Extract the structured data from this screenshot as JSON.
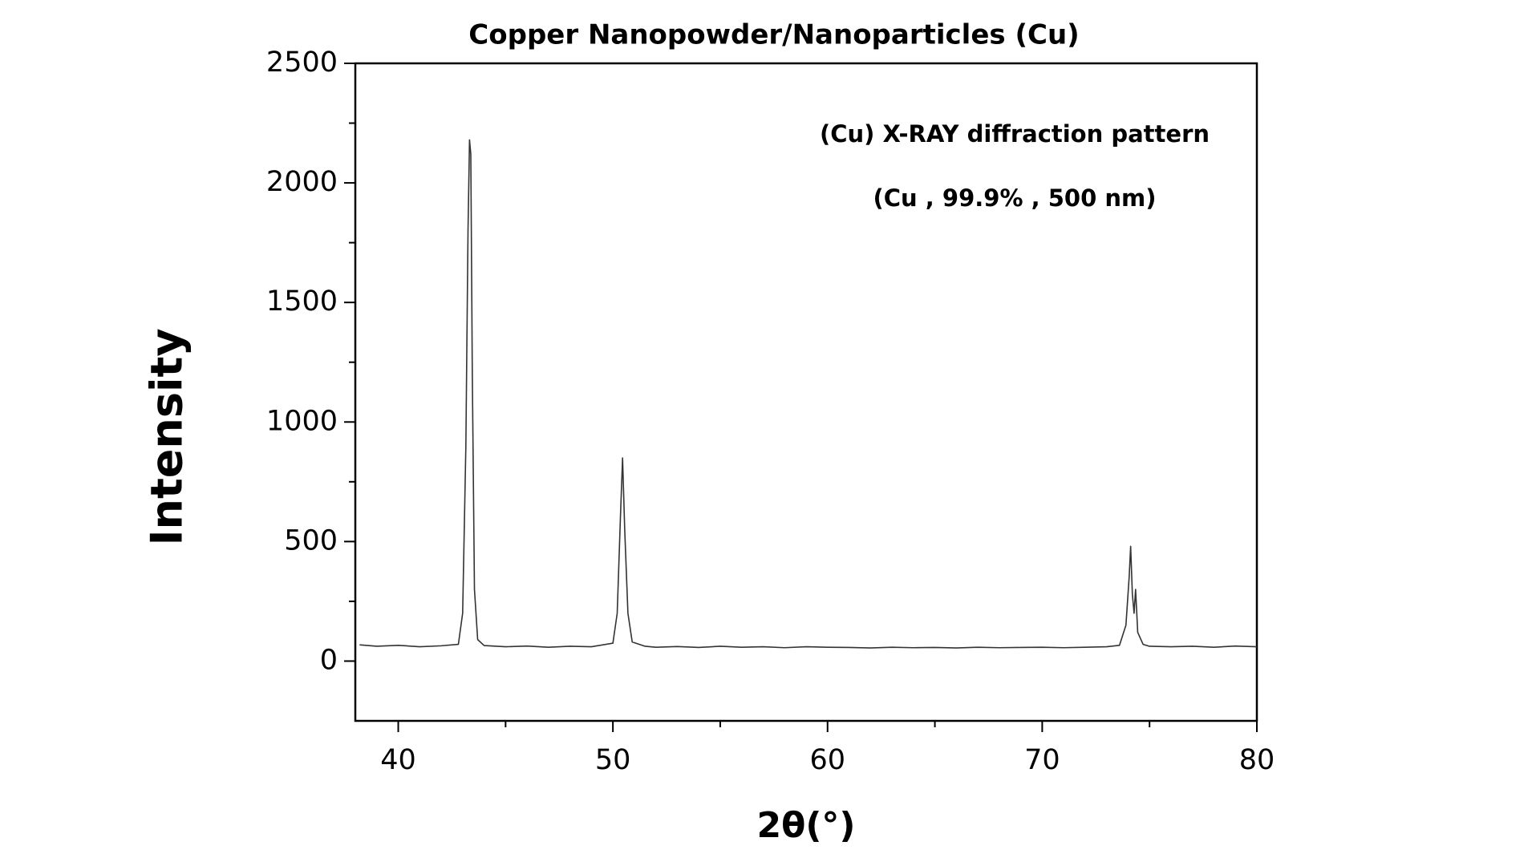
{
  "chart_data": {
    "type": "line",
    "title": "Copper Nanopowder/Nanoparticles (Cu)",
    "annotations": [
      "(Cu) X-RAY diffraction pattern",
      "(Cu , 99.9% , 500 nm)"
    ],
    "x_label": "2θ(°)",
    "y_label": "Intensity",
    "x": [
      38.2,
      39,
      40,
      41,
      42,
      42.8,
      43.0,
      43.15,
      43.25,
      43.32,
      43.38,
      43.45,
      43.55,
      43.7,
      44,
      45,
      46,
      47,
      48,
      49,
      50.0,
      50.2,
      50.35,
      50.45,
      50.55,
      50.7,
      50.9,
      51.5,
      52,
      53,
      54,
      55,
      56,
      57,
      58,
      59,
      60,
      61,
      62,
      63,
      64,
      65,
      66,
      67,
      68,
      69,
      70,
      71,
      72,
      73,
      73.6,
      73.9,
      74.05,
      74.12,
      74.2,
      74.28,
      74.35,
      74.45,
      74.7,
      75,
      76,
      77,
      78,
      79,
      80
    ],
    "series": [
      {
        "color": "#333333",
        "values": [
          68,
          62,
          66,
          60,
          64,
          70,
          200,
          900,
          1800,
          2180,
          2120,
          1200,
          300,
          90,
          65,
          60,
          63,
          58,
          62,
          60,
          75,
          200,
          600,
          850,
          550,
          200,
          80,
          62,
          58,
          61,
          57,
          62,
          58,
          60,
          56,
          60,
          58,
          57,
          55,
          58,
          56,
          57,
          55,
          58,
          56,
          57,
          58,
          56,
          58,
          60,
          66,
          150,
          350,
          480,
          280,
          200,
          300,
          120,
          70,
          62,
          60,
          62,
          58,
          63,
          60
        ]
      }
    ],
    "xlim": [
      38,
      80
    ],
    "xticks": [
      40,
      50,
      60,
      70,
      80
    ],
    "ylim": [
      -250,
      2500
    ],
    "yticks": [
      0,
      500,
      1000,
      1500,
      2000,
      2500
    ]
  }
}
